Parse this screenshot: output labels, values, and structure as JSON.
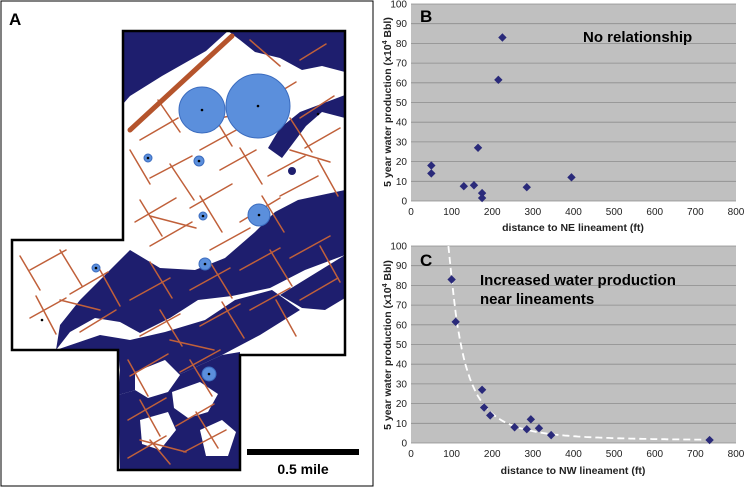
{
  "colors": {
    "map_blue": "#1e1e6e",
    "lineament": "#c0603a",
    "ne_bar": "#b5542c",
    "well_circle": "#5b8fdc",
    "plot_bg": "#c0c0c0",
    "marker": "#2a2a7a",
    "trend_line": "#ffffff"
  },
  "map": {
    "letter": "A",
    "scale_label": "0.5 mile"
  },
  "chart_data": [
    {
      "id": "B",
      "type": "scatter",
      "letter": "B",
      "annotation": [
        "No relationship"
      ],
      "xlabel": "distance to NE lineament (ft)",
      "ylabel": "5 year water production (x10",
      "ylabel_sup": "4",
      "ylabel_tail": " Bbl)",
      "xlim": [
        0,
        800
      ],
      "ylim": [
        0,
        100
      ],
      "xticks": [
        0,
        100,
        200,
        300,
        400,
        500,
        600,
        700,
        800
      ],
      "yticks": [
        0,
        10,
        20,
        30,
        40,
        50,
        60,
        70,
        80,
        90,
        100
      ],
      "grid": "horizontal",
      "x": [
        50,
        50,
        130,
        155,
        165,
        175,
        175,
        215,
        225,
        285,
        395
      ],
      "y": [
        18,
        14,
        7.5,
        8,
        27,
        4,
        1.5,
        61.5,
        83,
        7,
        12
      ]
    },
    {
      "id": "C",
      "type": "scatter",
      "letter": "C",
      "annotation": [
        "Increased water production",
        "near lineaments"
      ],
      "xlabel": "distance to NW lineament (ft)",
      "ylabel": "5 year water production (x10",
      "ylabel_sup": "4",
      "ylabel_tail": " Bbl)",
      "xlim": [
        0,
        800
      ],
      "ylim": [
        0,
        100
      ],
      "xticks": [
        0,
        100,
        200,
        300,
        400,
        500,
        600,
        700,
        800
      ],
      "yticks": [
        0,
        10,
        20,
        30,
        40,
        50,
        60,
        70,
        80,
        90,
        100
      ],
      "grid": "horizontal",
      "x": [
        100,
        110,
        175,
        180,
        195,
        255,
        285,
        295,
        315,
        345,
        735
      ],
      "y": [
        83,
        61.5,
        27,
        18,
        14,
        8,
        7,
        12,
        7.5,
        4,
        1.5
      ],
      "trend": "power-law fit (dashed)"
    }
  ]
}
